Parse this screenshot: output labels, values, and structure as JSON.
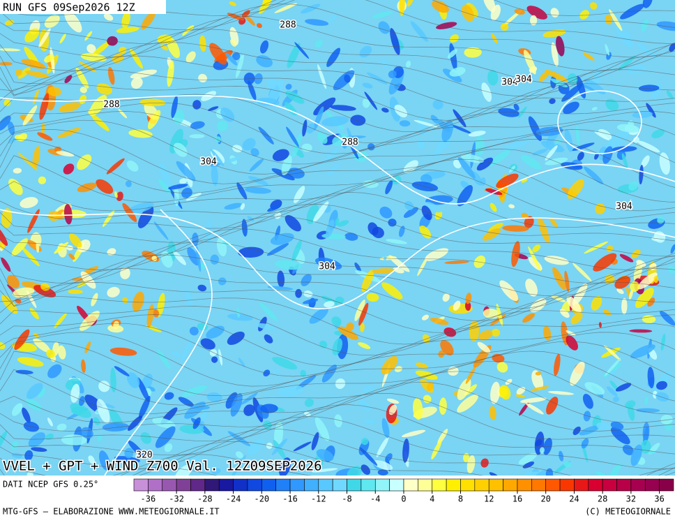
{
  "header": {
    "run": "RUN GFS 09Sep2026 12Z"
  },
  "map": {
    "title": "VVEL + GPT + WIND Z700 Val. 12Z09SEP2026",
    "contour_labels": [
      288,
      288,
      304,
      288,
      304,
      304,
      304,
      304,
      320
    ]
  },
  "legend": {
    "source": "DATI NCEP GFS 0.25°",
    "range": [
      -38,
      38
    ],
    "ticks": [
      -36,
      -32,
      -28,
      -24,
      -20,
      -16,
      -12,
      -8,
      -4,
      0,
      4,
      8,
      12,
      16,
      20,
      24,
      28,
      32,
      36
    ],
    "colors": [
      "#c890d8",
      "#b070c8",
      "#9858b0",
      "#804098",
      "#602888",
      "#301878",
      "#1818a0",
      "#1030c8",
      "#1048e0",
      "#1060f0",
      "#2080f8",
      "#3098ff",
      "#40b0ff",
      "#58c8ff",
      "#70d8ff",
      "#40d8e8",
      "#60e8f0",
      "#90f4f8",
      "#c8ffff",
      "#ffffc8",
      "#ffff98",
      "#ffff40",
      "#fff000",
      "#ffe000",
      "#ffd000",
      "#ffc000",
      "#ffa800",
      "#ff9000",
      "#ff7800",
      "#ff5800",
      "#f83800",
      "#e81818",
      "#d80030",
      "#c80040",
      "#b80048",
      "#a80050",
      "#980050",
      "#880048"
    ]
  },
  "footer": {
    "left": "MTG-GFS — ELABORAZIONE WWW.METEOGIORNALE.IT",
    "right": "(C) METEOGIORNALE"
  }
}
